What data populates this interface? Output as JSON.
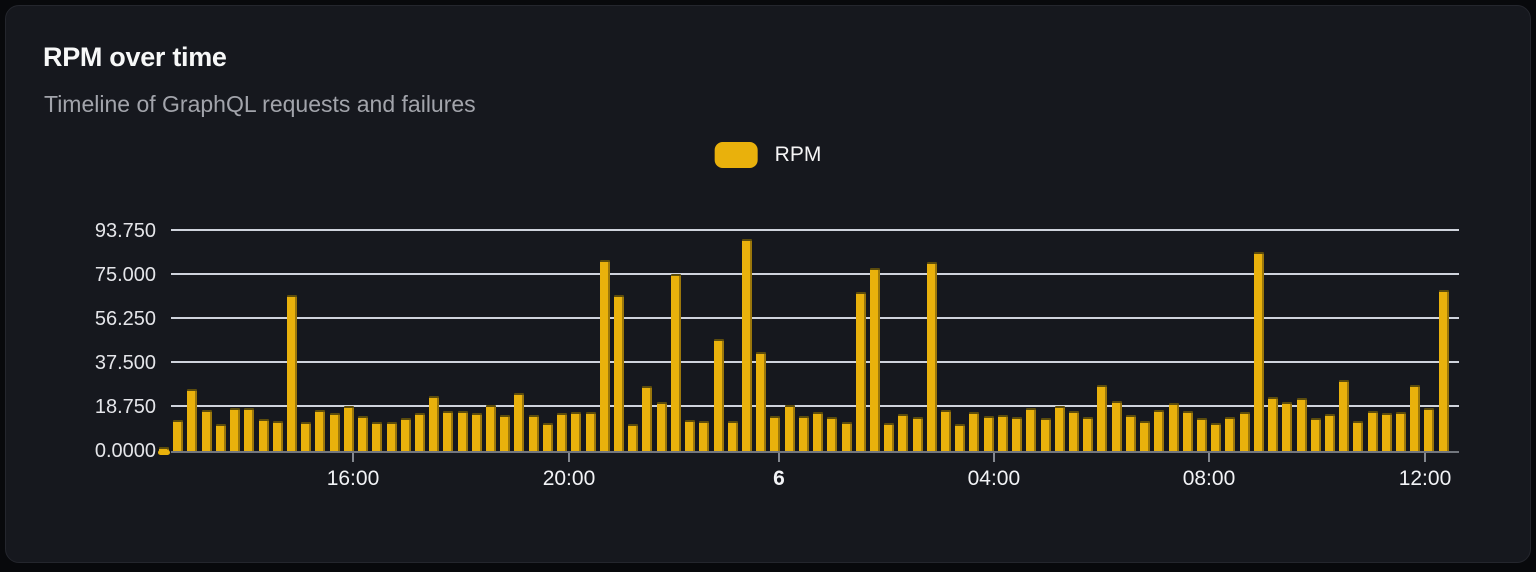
{
  "card": {
    "title": "RPM over time",
    "subtitle": "Timeline of GraphQL requests and failures"
  },
  "legend": {
    "position": "top-center",
    "items": [
      {
        "label": "RPM",
        "color": "#E9B10C"
      }
    ]
  },
  "chart_data": {
    "type": "bar",
    "title": "RPM over time",
    "subtitle": "Timeline of GraphQL requests and failures",
    "series_name": "RPM",
    "grid": true,
    "legend_position": "top-center",
    "ylim": [
      0,
      96
    ],
    "y_ticks": [
      {
        "value": 0,
        "label": "0.0000"
      },
      {
        "value": 18.75,
        "label": "18.750"
      },
      {
        "value": 37.5,
        "label": "37.500"
      },
      {
        "value": 56.25,
        "label": "56.250"
      },
      {
        "value": 75,
        "label": "75.000"
      },
      {
        "value": 93.75,
        "label": "93.750"
      }
    ],
    "x_ticks": [
      {
        "label": "16:00",
        "pos": 0.1413,
        "bold": false
      },
      {
        "label": "20:00",
        "pos": 0.309,
        "bold": false
      },
      {
        "label": "6",
        "pos": 0.472,
        "bold": true
      },
      {
        "label": "04:00",
        "pos": 0.6389,
        "bold": false
      },
      {
        "label": "08:00",
        "pos": 0.8059,
        "bold": false
      },
      {
        "label": "12:00",
        "pos": 0.9736,
        "bold": false
      }
    ],
    "values": [
      1.5,
      13.3,
      26.3,
      17.6,
      11.5,
      18.3,
      18.3,
      13.7,
      13.0,
      66.5,
      12.3,
      17.3,
      16.2,
      19.0,
      15.1,
      12.3,
      12.5,
      14.0,
      16.2,
      23.4,
      16.9,
      16.9,
      16.2,
      19.7,
      15.5,
      24.8,
      15.5,
      12.1,
      16.4,
      16.6,
      16.6,
      81.5,
      66.7,
      11.7,
      27.9,
      21.1,
      75.6,
      13.4,
      12.7,
      47.9,
      12.7,
      90.5,
      42.3,
      14.9,
      19.5,
      14.9,
      16.8,
      14.7,
      12.2,
      68.0,
      77.9,
      11.9,
      15.7,
      14.7,
      80.6,
      17.6,
      11.6,
      16.6,
      15.0,
      15.5,
      14.7,
      18.3,
      14.0,
      19.3,
      17.2,
      14.6,
      28.3,
      21.2,
      15.5,
      12.9,
      17.3,
      20.5,
      16.9,
      14.0,
      11.8,
      14.4,
      16.6,
      85.1,
      23.1,
      20.9,
      22.8,
      14.1,
      15.9,
      30.3,
      13.0,
      17.0,
      16.2,
      16.7,
      28.1,
      18.5,
      68.9
    ]
  },
  "colors": {
    "background": "#08090C",
    "card_bg": "#16181E",
    "card_border": "#24262D",
    "title": "#F7F8F8",
    "subtitle": "#A2A4AB",
    "grid": "#E0E4ED",
    "axis": "#73777E",
    "tick": "#84888F",
    "y_label": "#E4E5E9",
    "x_label": "#F2F3F6",
    "bar": "#E9B10C",
    "bar_cap": "#5C4C0C"
  }
}
